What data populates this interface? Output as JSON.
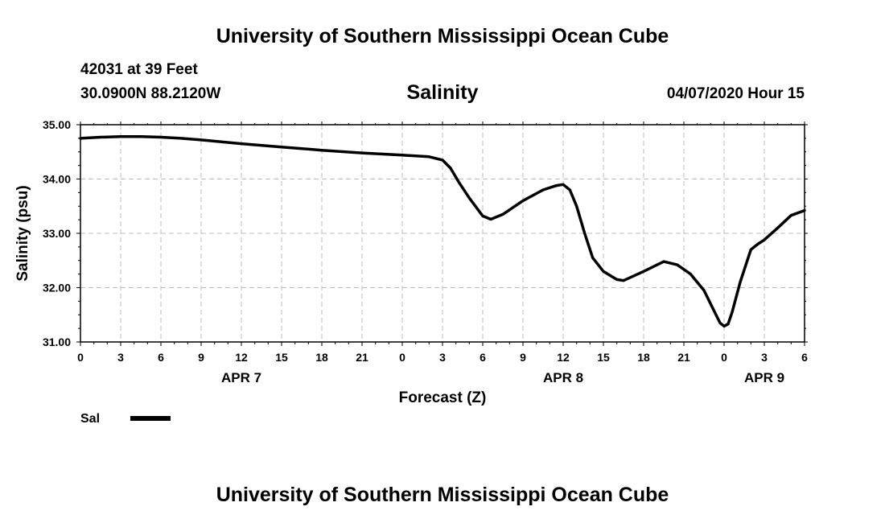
{
  "header": {
    "title": "University of Southern Mississippi Ocean Cube",
    "station": "42031 at 39 Feet",
    "location": "30.0900N 88.2120W",
    "variable": "Salinity",
    "run": "04/07/2020 Hour 15"
  },
  "footer": {
    "title": "University of Southern Mississippi Ocean Cube"
  },
  "chart_data": {
    "type": "line",
    "title": "Salinity",
    "xlabel": "Forecast (Z)",
    "ylabel": "Salinity (psu)",
    "ylim": [
      31.0,
      35.0
    ],
    "y_ticks": [
      "31.00",
      "32.00",
      "33.00",
      "34.00",
      "35.00"
    ],
    "x_unit": "hours",
    "x_range": [
      0,
      54
    ],
    "x_ticks": [
      {
        "x": 0,
        "label": "0"
      },
      {
        "x": 3,
        "label": "3"
      },
      {
        "x": 6,
        "label": "6"
      },
      {
        "x": 9,
        "label": "9"
      },
      {
        "x": 12,
        "label": "12"
      },
      {
        "x": 15,
        "label": "15"
      },
      {
        "x": 18,
        "label": "18"
      },
      {
        "x": 21,
        "label": "21"
      },
      {
        "x": 24,
        "label": "0"
      },
      {
        "x": 27,
        "label": "3"
      },
      {
        "x": 30,
        "label": "6"
      },
      {
        "x": 33,
        "label": "9"
      },
      {
        "x": 36,
        "label": "12"
      },
      {
        "x": 39,
        "label": "15"
      },
      {
        "x": 42,
        "label": "18"
      },
      {
        "x": 45,
        "label": "21"
      },
      {
        "x": 48,
        "label": "0"
      },
      {
        "x": 51,
        "label": "3"
      },
      {
        "x": 54,
        "label": "6"
      }
    ],
    "date_labels": [
      {
        "x": 12,
        "label": "APR 7"
      },
      {
        "x": 36,
        "label": "APR 8"
      },
      {
        "x": 51,
        "label": "APR 9"
      }
    ],
    "grid": true,
    "legend": "bottom-left",
    "series": [
      {
        "name": "Sal",
        "color": "#000000",
        "x": [
          0,
          1.5,
          3,
          4.5,
          6,
          7.5,
          9,
          12,
          15,
          18,
          21,
          24,
          26,
          27,
          27.6,
          28.2,
          29,
          30,
          30.6,
          31.5,
          33,
          34.5,
          35.5,
          36,
          36.5,
          37,
          37.6,
          38.2,
          39,
          40,
          40.5,
          42,
          43.5,
          44.5,
          45.5,
          46.5,
          47.3,
          47.7,
          48,
          48.3,
          48.6,
          49.2,
          50,
          50.5,
          51,
          52,
          53,
          54
        ],
        "y": [
          34.75,
          34.77,
          34.78,
          34.78,
          34.77,
          34.75,
          34.72,
          34.65,
          34.59,
          34.53,
          34.48,
          34.44,
          34.41,
          34.35,
          34.2,
          33.95,
          33.65,
          33.32,
          33.26,
          33.35,
          33.6,
          33.8,
          33.88,
          33.9,
          33.8,
          33.5,
          33.0,
          32.55,
          32.3,
          32.15,
          32.13,
          32.3,
          32.48,
          32.42,
          32.25,
          31.95,
          31.55,
          31.35,
          31.29,
          31.33,
          31.55,
          32.1,
          32.7,
          32.8,
          32.88,
          33.1,
          33.33,
          33.42
        ]
      }
    ]
  }
}
